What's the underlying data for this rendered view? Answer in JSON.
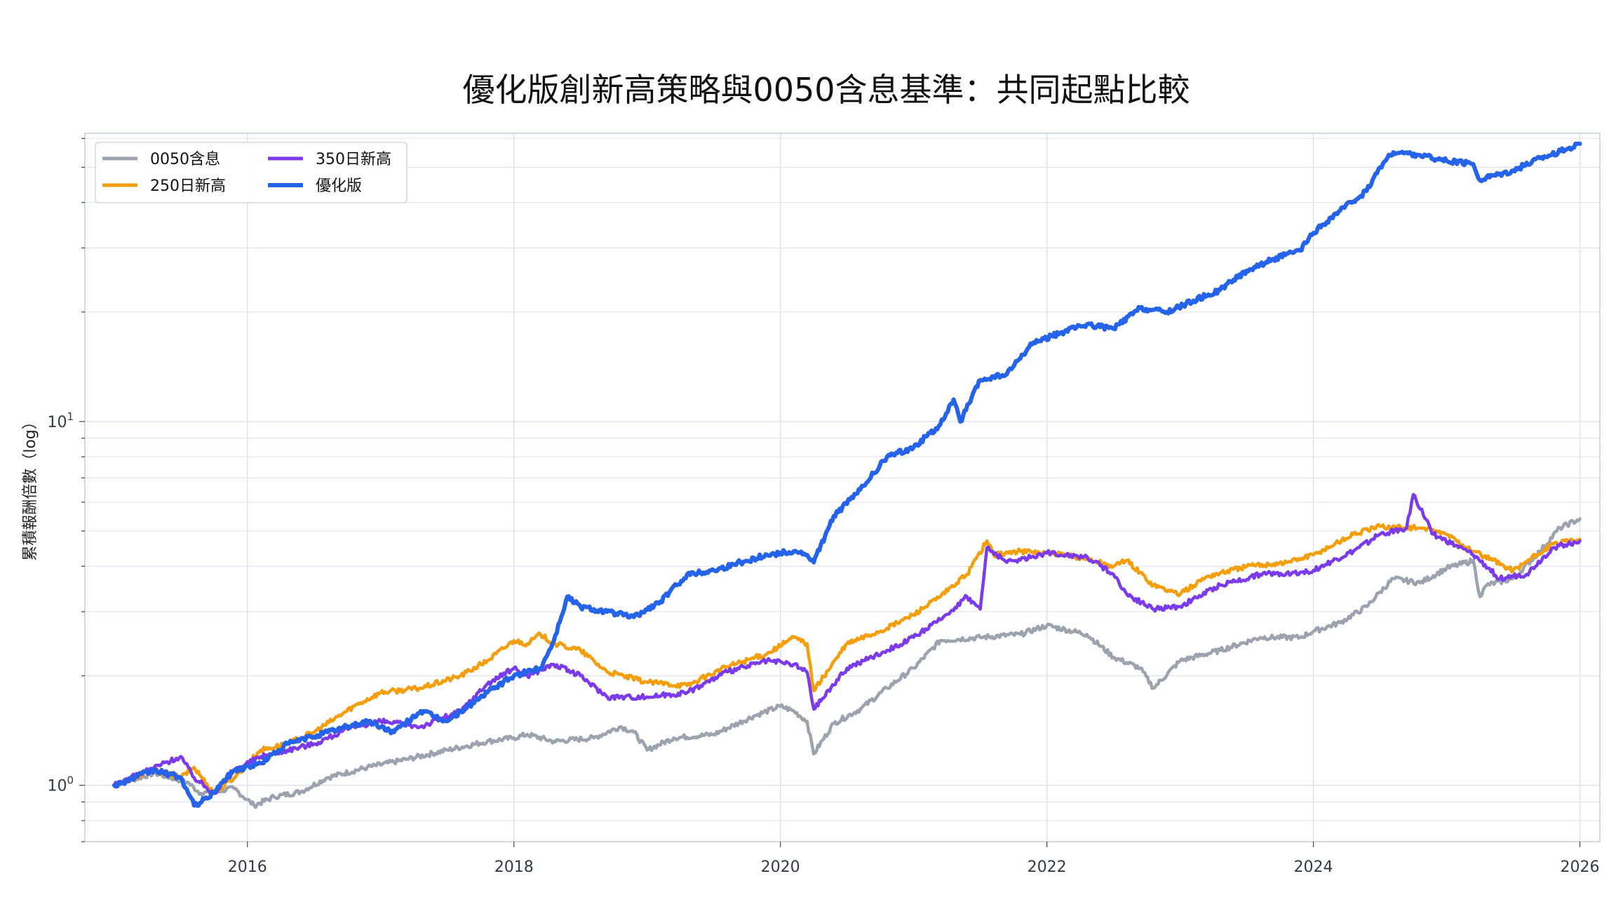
{
  "chart_data": {
    "type": "line",
    "title": "優化版創新高策略與0050含息基準：共同起點比較",
    "xlabel": "",
    "ylabel": "累積報酬倍數（log）",
    "yscale": "log",
    "xlim": [
      2014.78,
      2026.15
    ],
    "ylim": [
      0.7,
      62
    ],
    "x_ticks": [
      2016,
      2018,
      2020,
      2022,
      2024,
      2026
    ],
    "x_tick_labels": [
      "2016",
      "2018",
      "2020",
      "2022",
      "2024",
      "2026"
    ],
    "y_ticks": [
      1,
      10
    ],
    "y_tick_labels": [
      {
        "base": "10",
        "exp": "0"
      },
      {
        "base": "10",
        "exp": "1"
      }
    ],
    "grid": true,
    "legend_position": "top-left",
    "legend": [
      "0050含息",
      "250日新高",
      "350日新高",
      "優化版"
    ],
    "series": [
      {
        "name": "0050含息",
        "color": "#9ca3af",
        "x": [
          2015.0,
          2015.3,
          2015.55,
          2015.65,
          2015.9,
          2016.05,
          2016.2,
          2016.4,
          2016.6,
          2016.9,
          2017.2,
          2017.5,
          2017.8,
          2018.0,
          2018.1,
          2018.3,
          2018.6,
          2018.8,
          2018.9,
          2019.0,
          2019.2,
          2019.5,
          2019.8,
          2020.0,
          2020.1,
          2020.2,
          2020.25,
          2020.4,
          2020.6,
          2020.8,
          2021.0,
          2021.2,
          2021.5,
          2021.8,
          2022.0,
          2022.3,
          2022.5,
          2022.7,
          2022.8,
          2023.0,
          2023.3,
          2023.6,
          2023.9,
          2024.0,
          2024.2,
          2024.4,
          2024.5,
          2024.6,
          2024.8,
          2025.0,
          2025.2,
          2025.25,
          2025.3,
          2025.5,
          2025.7,
          2025.85,
          2026.0
        ],
        "y": [
          1.0,
          1.08,
          1.02,
          0.95,
          0.98,
          0.88,
          0.93,
          0.96,
          1.05,
          1.12,
          1.18,
          1.25,
          1.32,
          1.35,
          1.38,
          1.32,
          1.35,
          1.45,
          1.4,
          1.25,
          1.35,
          1.38,
          1.55,
          1.65,
          1.6,
          1.5,
          1.22,
          1.48,
          1.62,
          1.85,
          2.1,
          2.5,
          2.55,
          2.6,
          2.75,
          2.6,
          2.25,
          2.1,
          1.85,
          2.2,
          2.35,
          2.55,
          2.55,
          2.65,
          2.8,
          3.1,
          3.4,
          3.7,
          3.6,
          3.95,
          4.15,
          3.3,
          3.55,
          3.7,
          4.4,
          5.1,
          5.4
        ]
      },
      {
        "name": "250日新高",
        "color": "#f59e0b",
        "x": [
          2015.0,
          2015.3,
          2015.5,
          2015.6,
          2015.75,
          2015.9,
          2016.1,
          2016.3,
          2016.5,
          2016.8,
          2017.0,
          2017.3,
          2017.6,
          2017.8,
          2018.0,
          2018.1,
          2018.2,
          2018.3,
          2018.5,
          2018.7,
          2019.0,
          2019.3,
          2019.6,
          2019.9,
          2020.1,
          2020.2,
          2020.25,
          2020.5,
          2020.8,
          2021.0,
          2021.2,
          2021.4,
          2021.55,
          2021.6,
          2021.8,
          2022.0,
          2022.3,
          2022.5,
          2022.6,
          2022.8,
          2023.0,
          2023.2,
          2023.5,
          2023.8,
          2024.0,
          2024.3,
          2024.5,
          2024.8,
          2025.0,
          2025.2,
          2025.5,
          2025.8,
          2026.0
        ],
        "y": [
          1.0,
          1.1,
          1.05,
          1.12,
          0.95,
          1.05,
          1.25,
          1.3,
          1.4,
          1.65,
          1.8,
          1.85,
          2.0,
          2.2,
          2.5,
          2.45,
          2.6,
          2.45,
          2.35,
          2.05,
          1.92,
          1.88,
          2.12,
          2.3,
          2.55,
          2.45,
          1.82,
          2.45,
          2.7,
          2.95,
          3.3,
          3.8,
          4.7,
          4.3,
          4.4,
          4.35,
          4.2,
          4.0,
          4.15,
          3.55,
          3.35,
          3.75,
          4.0,
          4.1,
          4.3,
          4.9,
          5.15,
          5.1,
          4.9,
          4.4,
          3.9,
          4.6,
          4.75
        ]
      },
      {
        "name": "350日新高",
        "color": "#7c3aed",
        "x": [
          2015.0,
          2015.3,
          2015.5,
          2015.6,
          2015.75,
          2015.9,
          2016.1,
          2016.3,
          2016.5,
          2016.8,
          2017.0,
          2017.3,
          2017.6,
          2017.8,
          2018.0,
          2018.1,
          2018.3,
          2018.5,
          2018.7,
          2019.0,
          2019.3,
          2019.6,
          2019.9,
          2020.1,
          2020.2,
          2020.25,
          2020.5,
          2020.8,
          2021.0,
          2021.2,
          2021.4,
          2021.5,
          2021.55,
          2021.7,
          2022.0,
          2022.3,
          2022.5,
          2022.6,
          2022.8,
          2023.0,
          2023.3,
          2023.6,
          2023.9,
          2024.0,
          2024.3,
          2024.5,
          2024.7,
          2024.75,
          2024.9,
          2025.2,
          2025.4,
          2025.6,
          2025.8,
          2026.0
        ],
        "y": [
          1.0,
          1.12,
          1.2,
          1.05,
          0.95,
          1.1,
          1.2,
          1.25,
          1.3,
          1.45,
          1.5,
          1.45,
          1.6,
          1.9,
          2.1,
          2.0,
          2.15,
          2.0,
          1.75,
          1.75,
          1.8,
          2.05,
          2.2,
          2.15,
          2.05,
          1.62,
          2.1,
          2.35,
          2.55,
          2.85,
          3.3,
          3.05,
          4.5,
          4.1,
          4.35,
          4.25,
          3.8,
          3.35,
          3.05,
          3.1,
          3.55,
          3.8,
          3.85,
          3.9,
          4.4,
          4.9,
          5.1,
          6.3,
          4.9,
          4.3,
          3.7,
          3.8,
          4.5,
          4.7
        ]
      },
      {
        "name": "優化版",
        "color": "#2563eb",
        "x": [
          2015.0,
          2015.3,
          2015.5,
          2015.6,
          2015.7,
          2015.9,
          2016.1,
          2016.3,
          2016.6,
          2016.9,
          2017.1,
          2017.3,
          2017.5,
          2017.8,
          2018.0,
          2018.2,
          2018.3,
          2018.4,
          2018.5,
          2018.7,
          2018.9,
          2019.1,
          2019.3,
          2019.5,
          2019.7,
          2019.9,
          2020.1,
          2020.2,
          2020.25,
          2020.4,
          2020.6,
          2020.8,
          2021.0,
          2021.2,
          2021.3,
          2021.35,
          2021.5,
          2021.7,
          2021.9,
          2022.1,
          2022.3,
          2022.5,
          2022.7,
          2022.9,
          2023.1,
          2023.3,
          2023.5,
          2023.7,
          2023.9,
          2024.0,
          2024.2,
          2024.4,
          2024.5,
          2024.6,
          2024.8,
          2025.0,
          2025.2,
          2025.25,
          2025.3,
          2025.5,
          2025.7,
          2025.9,
          2026.0
        ],
        "y": [
          1.0,
          1.1,
          1.05,
          0.88,
          0.92,
          1.1,
          1.15,
          1.3,
          1.4,
          1.5,
          1.4,
          1.6,
          1.5,
          1.8,
          2.0,
          2.1,
          2.5,
          3.3,
          3.1,
          3.0,
          2.9,
          3.2,
          3.8,
          3.9,
          4.1,
          4.3,
          4.4,
          4.3,
          4.1,
          5.5,
          6.5,
          8.0,
          8.5,
          9.8,
          11.5,
          10.0,
          13.0,
          13.5,
          16.5,
          17.5,
          18.5,
          18.0,
          20.5,
          20.0,
          21.5,
          23.0,
          26.0,
          28.0,
          29.5,
          33.0,
          38.0,
          43.0,
          50.0,
          55.0,
          54.0,
          52.0,
          51.0,
          46.0,
          47.0,
          49.0,
          53.0,
          56.0,
          58.0
        ]
      }
    ]
  }
}
